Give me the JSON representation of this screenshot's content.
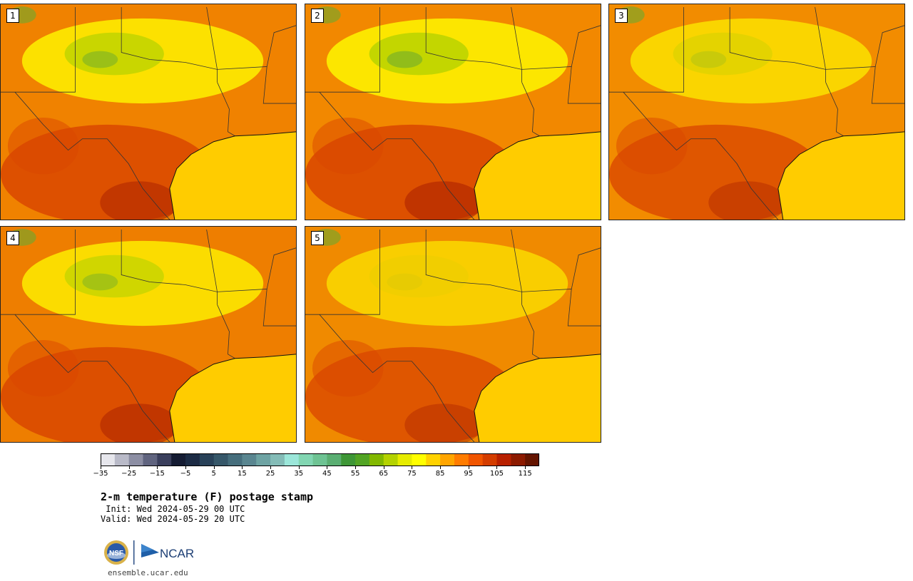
{
  "panels": [
    {
      "label": "1",
      "shade": "#f08200",
      "cool": 0.7,
      "hot": 0.8
    },
    {
      "label": "2",
      "shade": "#f28800",
      "cool": 0.8,
      "hot": 0.85
    },
    {
      "label": "3",
      "shade": "#f28c00",
      "cool": 0.3,
      "hot": 0.6
    },
    {
      "label": "4",
      "shade": "#ee7e00",
      "cool": 0.6,
      "hot": 0.8
    },
    {
      "label": "5",
      "shade": "#f08a00",
      "cool": 0.1,
      "hot": 0.6
    }
  ],
  "map_colors": {
    "gulf": "#ffcc00",
    "cool_green": "#b4d200",
    "dark_green": "#6aaa2e",
    "yellow": "#ffff00",
    "hot_red": "#d94600",
    "very_hot": "#b22800",
    "border": "#333333"
  },
  "colorbar": {
    "colors": [
      "#e6e6ec",
      "#b9bac8",
      "#8c8ea3",
      "#60647f",
      "#3a3f5c",
      "#151c33",
      "#1c2b44",
      "#284158",
      "#365769",
      "#466e7c",
      "#5a8690",
      "#6ea3a3",
      "#84bcb7",
      "#9be6d9",
      "#82d6b2",
      "#6ec393",
      "#5aae72",
      "#3e9636",
      "#52a424",
      "#82b800",
      "#b4d200",
      "#e6ec00",
      "#ffff00",
      "#ffd200",
      "#ffa500",
      "#ff7c00",
      "#f05500",
      "#d43d00",
      "#b82000",
      "#8c1a00",
      "#641400"
    ],
    "tick_labels": [
      "−35",
      "−25",
      "−15",
      "−5",
      "5",
      "15",
      "25",
      "35",
      "45",
      "55",
      "65",
      "75",
      "85",
      "95",
      "105",
      "115"
    ]
  },
  "title": "2-m temperature (F) postage stamp",
  "init": " Init: Wed 2024-05-29 00 UTC",
  "valid": "Valid: Wed 2024-05-29 20 UTC",
  "logos": {
    "nsf": "NSF",
    "ncar": "NCAR"
  },
  "url": "ensemble.ucar.edu"
}
